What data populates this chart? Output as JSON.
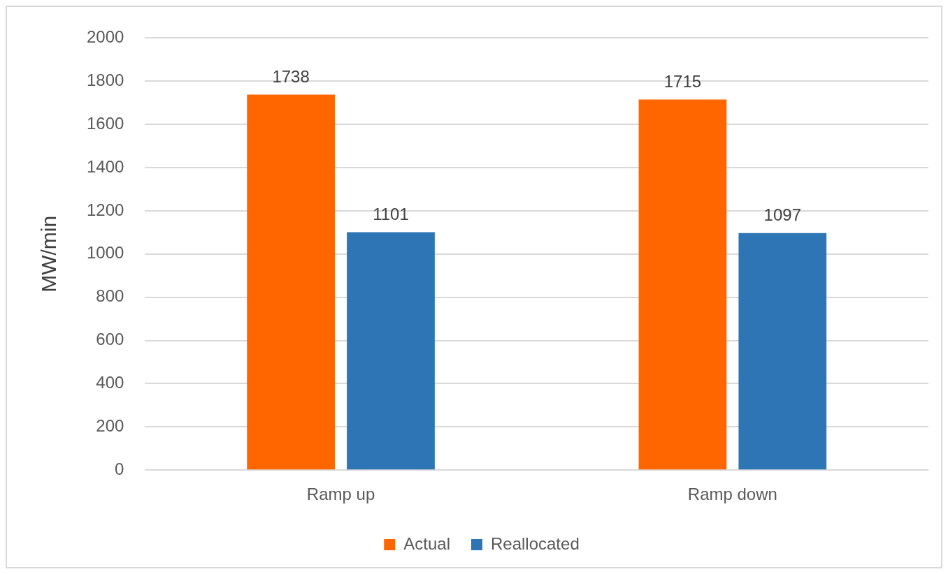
{
  "chart_data": {
    "type": "bar",
    "ylabel": "MW/min",
    "categories": [
      "Ramp up",
      "Ramp down"
    ],
    "series": [
      {
        "name": "Actual",
        "color": "#ff6600",
        "values": [
          1738,
          1715
        ]
      },
      {
        "name": "Reallocated",
        "color": "#2e75b6",
        "values": [
          1101,
          1097
        ]
      }
    ],
    "ylim": [
      0,
      2000
    ],
    "yticks": [
      0,
      200,
      400,
      600,
      800,
      1000,
      1200,
      1400,
      1600,
      1800,
      2000
    ],
    "grid": "y",
    "legend": "bottom",
    "data_labels": true
  }
}
